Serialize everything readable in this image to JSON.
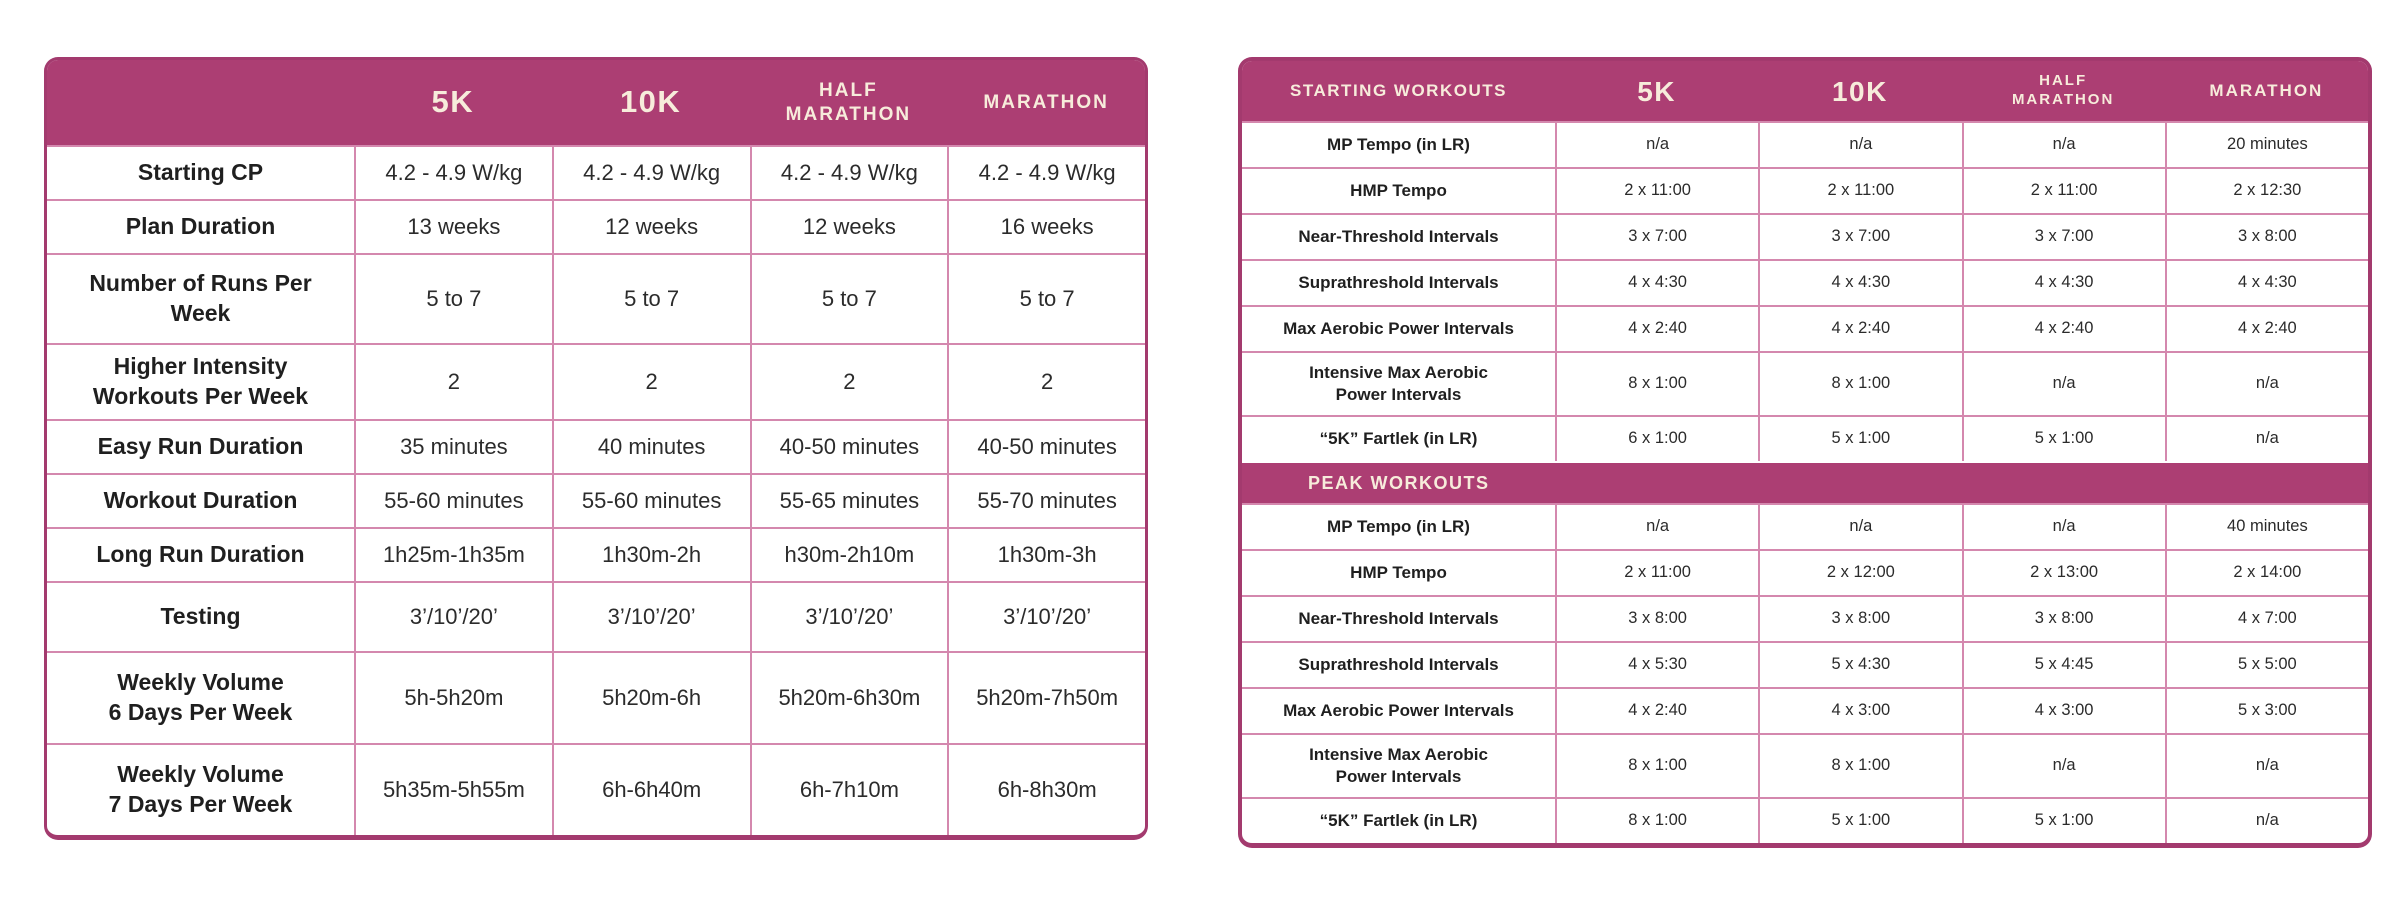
{
  "theme": {
    "header_bg": "#AC3E73",
    "header_text": "#F7ECDB",
    "grid_line": "#D488AE",
    "outer_border": "#A33A6E",
    "body_text": "#2B2B2B",
    "background": "#FFFFFF"
  },
  "chart_data": [
    {
      "type": "table",
      "title": "Training plan overview by race distance",
      "columns": [
        "",
        "5K",
        "10K",
        "HALF\nMARATHON",
        "MARATHON"
      ],
      "rows": [
        {
          "label": "Starting CP",
          "values": [
            "4.2 - 4.9 W/kg",
            "4.2 - 4.9 W/kg",
            "4.2 - 4.9 W/kg",
            "4.2 - 4.9 W/kg"
          ]
        },
        {
          "label": "Plan Duration",
          "values": [
            "13 weeks",
            "12 weeks",
            "12 weeks",
            "16 weeks"
          ]
        },
        {
          "label": "Number of Runs Per\nWeek",
          "values": [
            "5 to 7",
            "5 to 7",
            "5 to 7",
            "5 to 7"
          ]
        },
        {
          "label": "Higher Intensity\nWorkouts Per Week",
          "values": [
            "2",
            "2",
            "2",
            "2"
          ]
        },
        {
          "label": "Easy Run Duration",
          "values": [
            "35 minutes",
            "40 minutes",
            "40-50 minutes",
            "40-50 minutes"
          ]
        },
        {
          "label": "Workout Duration",
          "values": [
            "55-60 minutes",
            "55-60 minutes",
            "55-65 minutes",
            "55-70 minutes"
          ]
        },
        {
          "label": "Long Run Duration",
          "values": [
            "1h25m-1h35m",
            "1h30m-2h",
            "h30m-2h10m",
            "1h30m-3h"
          ]
        },
        {
          "label": "Testing",
          "values": [
            "3’/10’/20’",
            "3’/10’/20’",
            "3’/10’/20’",
            "3’/10’/20’"
          ]
        },
        {
          "label": "Weekly Volume\n6 Days Per Week",
          "values": [
            "5h-5h20m",
            "5h20m-6h",
            "5h20m-6h30m",
            "5h20m-7h50m"
          ]
        },
        {
          "label": "Weekly Volume\n7 Days Per Week",
          "values": [
            "5h35m-5h55m",
            "6h-6h40m",
            "6h-7h10m",
            "6h-8h30m"
          ]
        }
      ]
    },
    {
      "type": "table",
      "title": "Starting and peak workouts by race distance",
      "columns": [
        "STARTING WORKOUTS",
        "5K",
        "10K",
        "HALF\nMARATHON",
        "MARATHON"
      ],
      "starting_rows": [
        {
          "label": "MP Tempo (in LR)",
          "values": [
            "n/a",
            "n/a",
            "n/a",
            "20 minutes"
          ]
        },
        {
          "label": "HMP Tempo",
          "values": [
            "2 x 11:00",
            "2 x 11:00",
            "2 x 11:00",
            "2 x 12:30"
          ]
        },
        {
          "label": "Near-Threshold Intervals",
          "values": [
            "3 x 7:00",
            "3 x 7:00",
            "3 x 7:00",
            "3 x 8:00"
          ]
        },
        {
          "label": "Suprathreshold Intervals",
          "values": [
            "4 x 4:30",
            "4 x 4:30",
            "4 x 4:30",
            "4 x 4:30"
          ]
        },
        {
          "label": "Max Aerobic Power Intervals",
          "values": [
            "4 x 2:40",
            "4 x 2:40",
            "4 x 2:40",
            "4 x 2:40"
          ]
        },
        {
          "label": "Intensive Max Aerobic\nPower Intervals",
          "values": [
            "8 x 1:00",
            "8 x 1:00",
            "n/a",
            "n/a"
          ]
        },
        {
          "label": "“5K” Fartlek (in LR)",
          "values": [
            "6 x 1:00",
            "5 x 1:00",
            "5 x 1:00",
            "n/a"
          ]
        }
      ],
      "peak_header": "PEAK WORKOUTS",
      "peak_rows": [
        {
          "label": "MP Tempo (in LR)",
          "values": [
            "n/a",
            "n/a",
            "n/a",
            "40 minutes"
          ]
        },
        {
          "label": "HMP Tempo",
          "values": [
            "2 x 11:00",
            "2 x 12:00",
            "2 x 13:00",
            "2 x 14:00"
          ]
        },
        {
          "label": "Near-Threshold Intervals",
          "values": [
            "3 x 8:00",
            "3 x 8:00",
            "3 x 8:00",
            "4 x 7:00"
          ]
        },
        {
          "label": "Suprathreshold Intervals",
          "values": [
            "4 x 5:30",
            "5 x 4:30",
            "5 x 4:45",
            "5 x 5:00"
          ]
        },
        {
          "label": "Max Aerobic Power Intervals",
          "values": [
            "4 x 2:40",
            "4 x 3:00",
            "4 x 3:00",
            "5 x 3:00"
          ]
        },
        {
          "label": "Intensive Max Aerobic\nPower Intervals",
          "values": [
            "8 x 1:00",
            "8 x 1:00",
            "n/a",
            "n/a"
          ]
        },
        {
          "label": "“5K” Fartlek (in LR)",
          "values": [
            "8 x 1:00",
            "5 x 1:00",
            "5 x 1:00",
            "n/a"
          ]
        }
      ]
    }
  ]
}
